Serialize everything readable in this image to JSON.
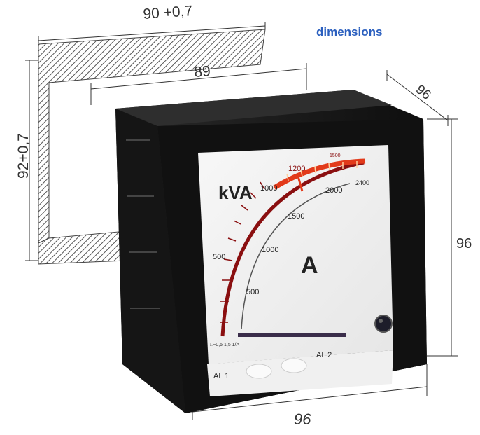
{
  "heading": "dimensions",
  "dimensions": {
    "cutout_width": "90 +0,7",
    "cutout_height": "92+0,7",
    "depth": "89",
    "front_depth": "96",
    "front_height": "96",
    "front_width": "96"
  },
  "meter": {
    "unit_top": "kVA",
    "unit_center": "A",
    "outer_scale": [
      "500",
      "1000",
      "1200",
      "1500",
      "2400"
    ],
    "inner_scale": [
      "500",
      "1000",
      "1500",
      "2000"
    ],
    "alarm_1": "AL 1",
    "alarm_2": "AL 2",
    "footnote": "□~0,5 1,5  1/A"
  },
  "colors": {
    "heading": "#2a5fbf",
    "housing": "#1a1a1a",
    "dial": "#f4f4f4",
    "scale_arc": "#8a0f10",
    "alarm_arc": "#e23a1a"
  }
}
